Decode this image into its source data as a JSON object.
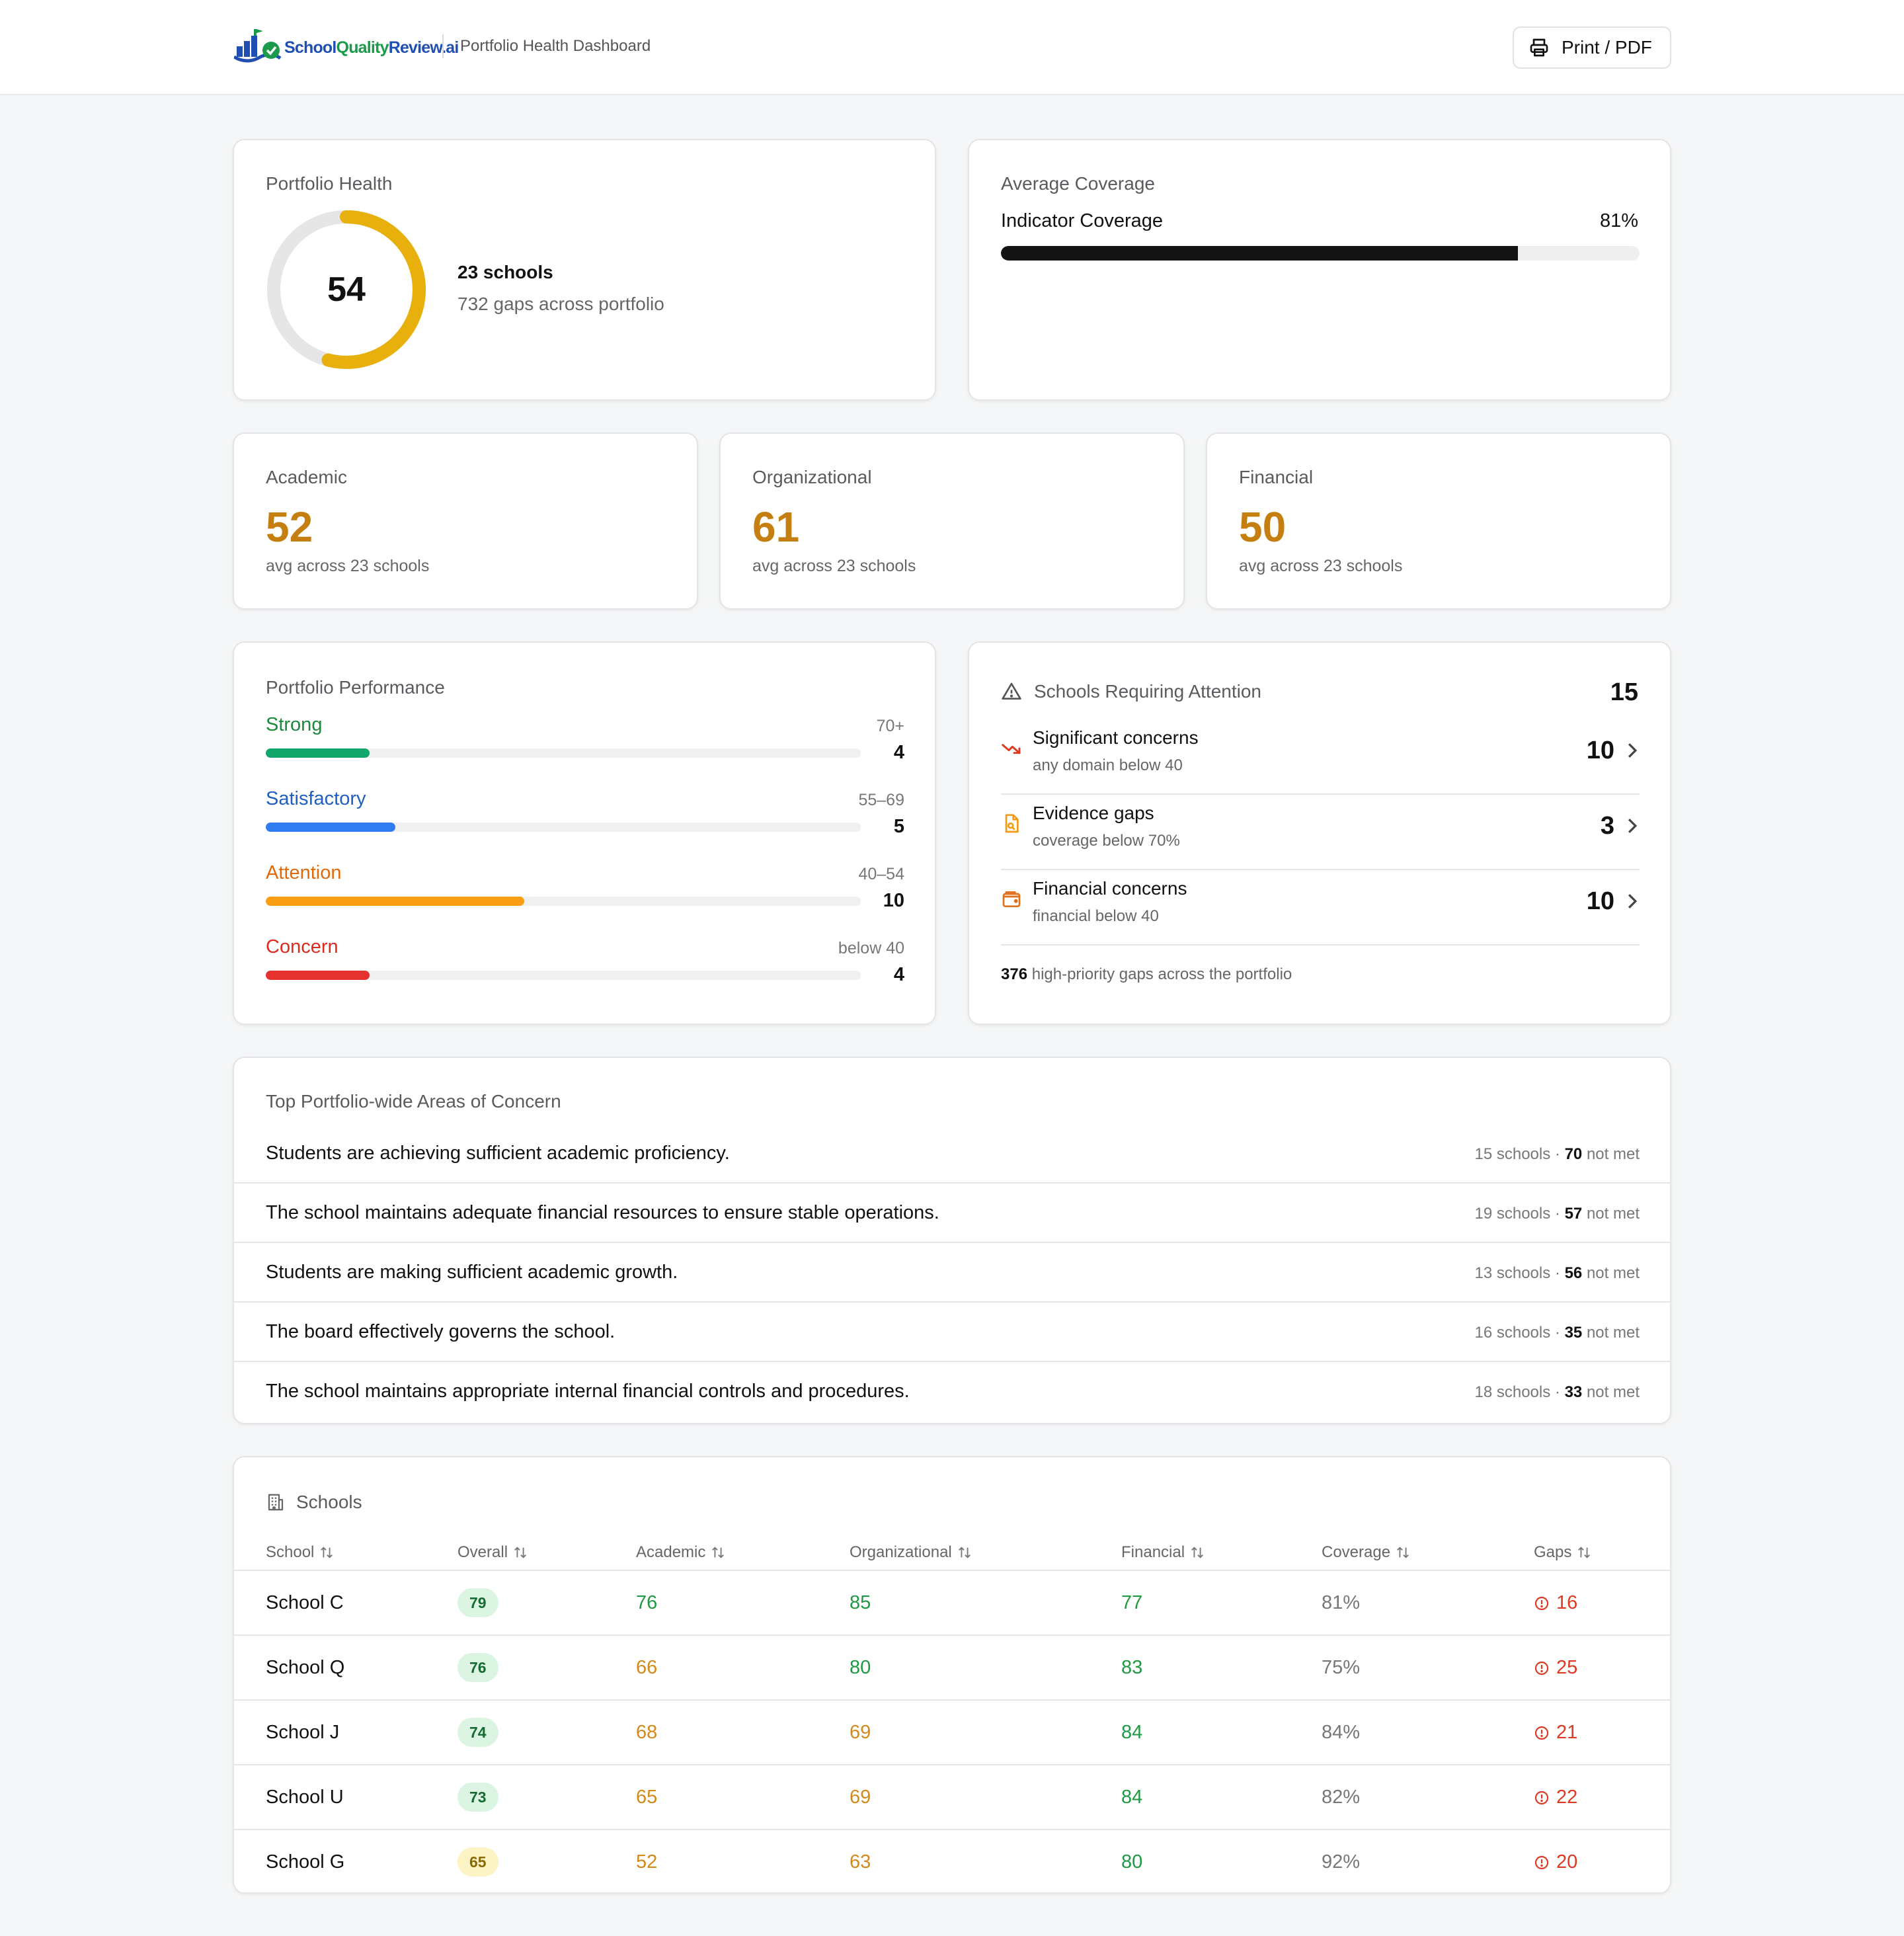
{
  "header": {
    "logo_text_a": "School",
    "logo_text_b": "Quality",
    "logo_text_c": "Review.ai",
    "title": "Portfolio Health Dashboard",
    "print_label": "Print / PDF"
  },
  "portfolio_health": {
    "label": "Portfolio Health",
    "score": "54",
    "score_fraction": 0.54,
    "schools": "23 schools",
    "gaps": "732 gaps across portfolio",
    "ring_color": "#e8b00c"
  },
  "average_coverage": {
    "label": "Average Coverage",
    "indicator_label": "Indicator Coverage",
    "percent_text": "81%",
    "fraction": 0.81
  },
  "domains": [
    {
      "label": "Academic",
      "score": "52",
      "sub": "avg across 23 schools"
    },
    {
      "label": "Organizational",
      "score": "61",
      "sub": "avg across 23 schools"
    },
    {
      "label": "Financial",
      "score": "50",
      "sub": "avg across 23 schools"
    }
  ],
  "performance": {
    "label": "Portfolio Performance",
    "total": 23,
    "rows": [
      {
        "name": "Strong",
        "range": "70+",
        "count": "4",
        "value": 4,
        "color": "#13a66a",
        "text_color": "#1a8a3c"
      },
      {
        "name": "Satisfactory",
        "range": "55–69",
        "count": "5",
        "value": 5,
        "color": "#2f7cf0",
        "text_color": "#1f5fc4"
      },
      {
        "name": "Attention",
        "range": "40–54",
        "count": "10",
        "value": 10,
        "color": "#fa9e14",
        "text_color": "#e06a0a"
      },
      {
        "name": "Concern",
        "range": "below 40",
        "count": "4",
        "value": 4,
        "color": "#e53230",
        "text_color": "#df2a22"
      }
    ]
  },
  "attention": {
    "label": "Schools Requiring Attention",
    "total": "15",
    "items": [
      {
        "title": "Significant concerns",
        "sub": "any domain below 40",
        "count": "10",
        "icon": "trending-down-icon"
      },
      {
        "title": "Evidence gaps",
        "sub": "coverage below 70%",
        "count": "3",
        "icon": "file-search-icon"
      },
      {
        "title": "Financial concerns",
        "sub": "financial below 40",
        "count": "10",
        "icon": "wallet-icon"
      }
    ],
    "footer_count": "376",
    "footer_text": "high-priority gaps across the portfolio"
  },
  "concerns": {
    "label": "Top Portfolio-wide Areas of Concern",
    "items": [
      {
        "text": "Students are achieving sufficient academic proficiency.",
        "schools": "15 schools ·",
        "count": "70",
        "suffix": "not met"
      },
      {
        "text": "The school maintains adequate financial resources to ensure stable operations.",
        "schools": "19 schools ·",
        "count": "57",
        "suffix": "not met"
      },
      {
        "text": "Students are making sufficient academic growth.",
        "schools": "13 schools ·",
        "count": "56",
        "suffix": "not met"
      },
      {
        "text": "The board effectively governs the school.",
        "schools": "16 schools ·",
        "count": "35",
        "suffix": "not met"
      },
      {
        "text": "The school maintains appropriate internal financial controls and procedures.",
        "schools": "18 schools ·",
        "count": "33",
        "suffix": "not met"
      }
    ]
  },
  "schools": {
    "label": "Schools",
    "columns": [
      "School",
      "Overall",
      "Academic",
      "Organizational",
      "Financial",
      "Coverage",
      "Gaps"
    ],
    "rows": [
      {
        "name": "School C",
        "overall": "79",
        "academic": "76",
        "organizational": "85",
        "financial": "77",
        "coverage": "81%",
        "gaps": "16"
      },
      {
        "name": "School Q",
        "overall": "76",
        "academic": "66",
        "organizational": "80",
        "financial": "83",
        "coverage": "75%",
        "gaps": "25"
      },
      {
        "name": "School J",
        "overall": "74",
        "academic": "68",
        "organizational": "69",
        "financial": "84",
        "coverage": "84%",
        "gaps": "21"
      },
      {
        "name": "School U",
        "overall": "73",
        "academic": "65",
        "organizational": "69",
        "financial": "84",
        "coverage": "82%",
        "gaps": "22"
      },
      {
        "name": "School G",
        "overall": "65",
        "academic": "52",
        "organizational": "63",
        "financial": "80",
        "coverage": "92%",
        "gaps": "20"
      }
    ]
  }
}
